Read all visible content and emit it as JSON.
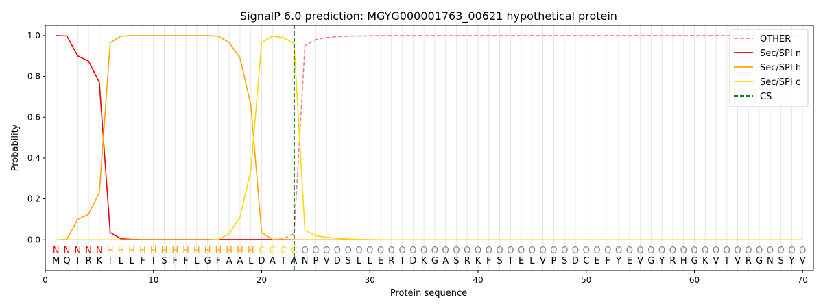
{
  "chart_data": {
    "type": "line",
    "title": "SignalP 6.0 prediction: MGYG000001763_00621 hypothetical protein",
    "xlabel": "Protein sequence",
    "ylabel": "Probability",
    "xlim": [
      0,
      71
    ],
    "ylim": [
      -0.15,
      1.05
    ],
    "xticks": [
      0,
      10,
      20,
      30,
      40,
      50,
      60,
      70
    ],
    "yticks": [
      0.0,
      0.2,
      0.4,
      0.6,
      0.8,
      1.0
    ],
    "legend_position": "top-right",
    "sequence": "MQIRKILLFISFFLGFAALDATANPVDSLLERIDKGASRKFSTELVPSDCEFYEVGYRHGKVTVRGNSYV",
    "region_labels": "NNNNNHHHHHHHHHHHHHHCCCCOOOOOOOOOOOOOOOOOOOOOOOOOOOOOOOOOOOOOOOOOOOOOOO",
    "region_colors": {
      "N": "#ee0000",
      "H": "#ffa500",
      "C": "#ffd700",
      "O": "#808080"
    },
    "series": [
      {
        "name": "OTHER",
        "color": "#f08080",
        "dash": "dashed",
        "values": [
          0,
          0,
          0,
          0,
          0,
          0,
          0,
          0,
          0,
          0,
          0,
          0,
          0,
          0,
          0,
          0,
          0,
          0,
          0,
          0,
          0,
          0.005,
          0.03,
          0.95,
          0.98,
          0.99,
          0.995,
          0.997,
          0.998,
          0.999,
          1,
          1,
          1,
          1,
          1,
          1,
          1,
          1,
          1,
          1,
          1,
          1,
          1,
          1,
          1,
          1,
          1,
          1,
          1,
          1,
          1,
          1,
          1,
          1,
          1,
          1,
          1,
          1,
          1,
          1,
          1,
          1,
          1,
          1,
          1,
          1,
          1,
          1,
          1,
          1
        ]
      },
      {
        "name": "Sec/SPI n",
        "color": "#ee0000",
        "dash": "solid",
        "values": [
          1.0,
          0.998,
          0.9,
          0.875,
          0.77,
          0.035,
          0.005,
          0.002,
          0.001,
          0.001,
          0.001,
          0.001,
          0.001,
          0.001,
          0.001,
          0.001,
          0.001,
          0.001,
          0.001,
          0.001,
          0.001,
          0.001,
          0,
          0,
          0,
          0,
          0,
          0,
          0,
          0,
          0,
          0,
          0,
          0,
          0,
          0,
          0,
          0,
          0,
          0,
          0,
          0,
          0,
          0,
          0,
          0,
          0,
          0,
          0,
          0,
          0,
          0,
          0,
          0,
          0,
          0,
          0,
          0,
          0,
          0,
          0,
          0,
          0,
          0,
          0,
          0,
          0,
          0,
          0,
          0
        ]
      },
      {
        "name": "Sec/SPI h",
        "color": "#ffa500",
        "dash": "solid",
        "values": [
          0,
          0.002,
          0.1,
          0.125,
          0.23,
          0.965,
          0.997,
          1.0,
          1.0,
          1.0,
          1.0,
          1.0,
          1.0,
          1.0,
          1.0,
          0.997,
          0.965,
          0.89,
          0.66,
          0.035,
          0.002,
          0.001,
          0,
          0,
          0,
          0,
          0,
          0,
          0,
          0,
          0,
          0,
          0,
          0,
          0,
          0,
          0,
          0,
          0,
          0,
          0,
          0,
          0,
          0,
          0,
          0,
          0,
          0,
          0,
          0,
          0,
          0,
          0,
          0,
          0,
          0,
          0,
          0,
          0,
          0,
          0,
          0,
          0,
          0,
          0,
          0,
          0,
          0,
          0,
          0
        ]
      },
      {
        "name": "Sec/SPI c",
        "color": "#ffd700",
        "dash": "solid",
        "values": [
          0,
          0,
          0,
          0,
          0,
          0,
          0,
          0,
          0,
          0,
          0,
          0,
          0,
          0,
          0,
          0.002,
          0.03,
          0.11,
          0.34,
          0.965,
          0.997,
          0.99,
          0.96,
          0.045,
          0.02,
          0.012,
          0.007,
          0.004,
          0.002,
          0.001,
          0,
          0,
          0,
          0,
          0,
          0,
          0,
          0,
          0,
          0,
          0,
          0,
          0,
          0,
          0,
          0,
          0,
          0,
          0,
          0,
          0,
          0,
          0,
          0,
          0,
          0,
          0,
          0,
          0,
          0,
          0,
          0,
          0,
          0,
          0,
          0,
          0,
          0,
          0,
          0
        ]
      }
    ],
    "cs": {
      "name": "CS",
      "x": 23,
      "color": "#006400",
      "dash": "dashed"
    }
  }
}
